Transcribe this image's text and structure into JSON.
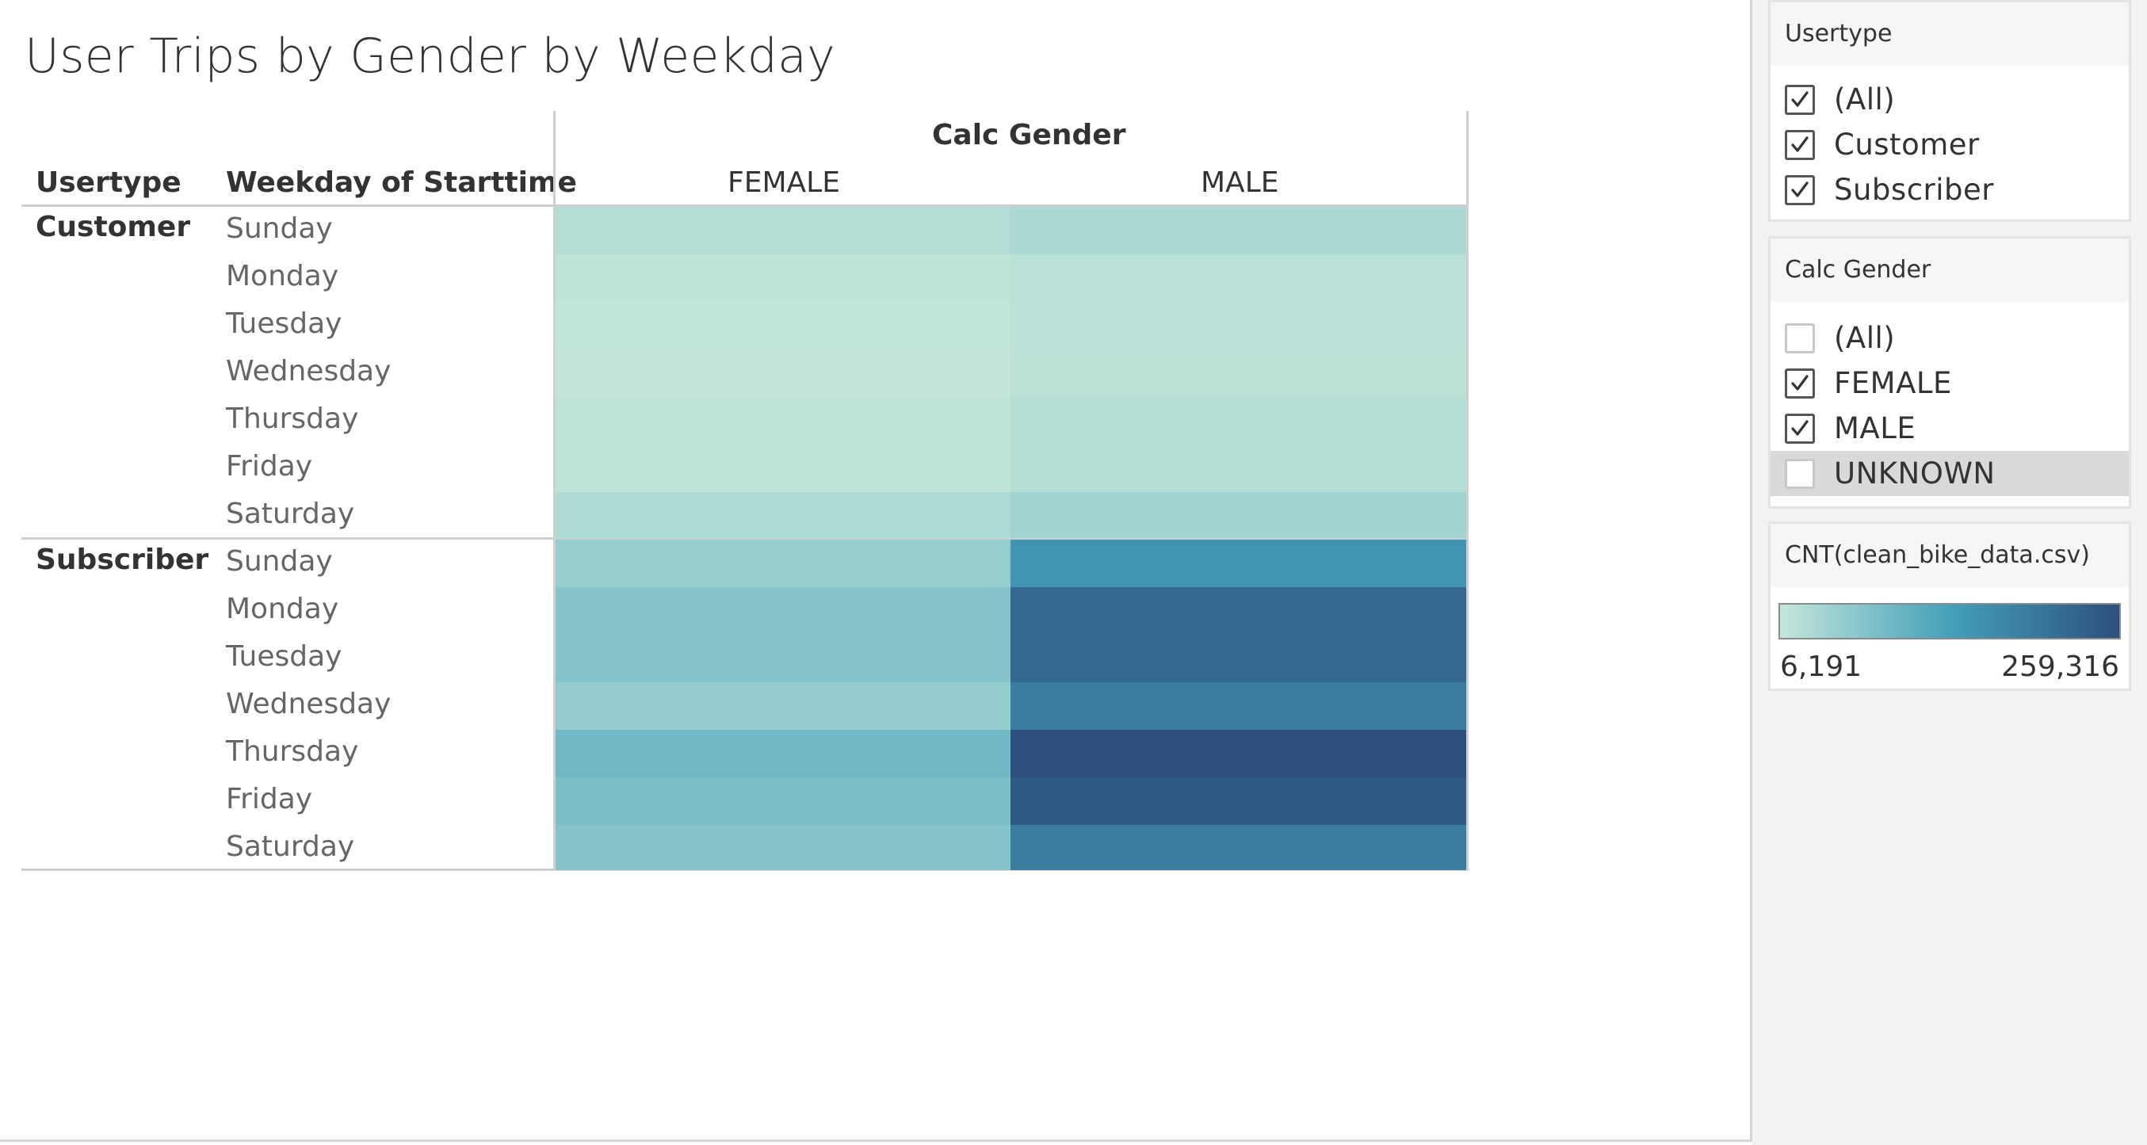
{
  "title": "User Trips by Gender by Weekday",
  "headers": {
    "row_dim_1": "Usertype",
    "row_dim_2": "Weekday of Starttime",
    "column_dim": "Calc Gender"
  },
  "colors": {
    "scale_low": "#c4e6da",
    "scale_mid": "#45a0ba",
    "scale_high": "#2d507f"
  },
  "chart_data": {
    "type": "heatmap",
    "title": "User Trips by Gender by Weekday",
    "columns": [
      "FEMALE",
      "MALE"
    ],
    "rows": [
      {
        "usertype": "Customer",
        "weekday": "Sunday",
        "values": [
          22000,
          30000
        ]
      },
      {
        "usertype": "Customer",
        "weekday": "Monday",
        "values": [
          9000,
          16000
        ]
      },
      {
        "usertype": "Customer",
        "weekday": "Tuesday",
        "values": [
          7000,
          15000
        ]
      },
      {
        "usertype": "Customer",
        "weekday": "Wednesday",
        "values": [
          6191,
          14000
        ]
      },
      {
        "usertype": "Customer",
        "weekday": "Thursday",
        "values": [
          9000,
          22000
        ]
      },
      {
        "usertype": "Customer",
        "weekday": "Friday",
        "values": [
          9000,
          22000
        ]
      },
      {
        "usertype": "Customer",
        "weekday": "Saturday",
        "values": [
          28000,
          41000
        ]
      },
      {
        "usertype": "Subscriber",
        "weekday": "Sunday",
        "values": [
          52000,
          150000
        ]
      },
      {
        "usertype": "Subscriber",
        "weekday": "Monday",
        "values": [
          70000,
          222000
        ]
      },
      {
        "usertype": "Subscriber",
        "weekday": "Tuesday",
        "values": [
          70000,
          222000
        ]
      },
      {
        "usertype": "Subscriber",
        "weekday": "Wednesday",
        "values": [
          55000,
          190000
        ]
      },
      {
        "usertype": "Subscriber",
        "weekday": "Thursday",
        "values": [
          88000,
          259316
        ]
      },
      {
        "usertype": "Subscriber",
        "weekday": "Friday",
        "values": [
          78000,
          245000
        ]
      },
      {
        "usertype": "Subscriber",
        "weekday": "Saturday",
        "values": [
          70000,
          190000
        ]
      }
    ],
    "color_range": [
      6191,
      259316
    ]
  },
  "filters": {
    "usertype": {
      "title": "Usertype",
      "items": [
        {
          "label": "(All)",
          "checked": true
        },
        {
          "label": "Customer",
          "checked": true
        },
        {
          "label": "Subscriber",
          "checked": true
        }
      ]
    },
    "gender": {
      "title": "Calc Gender",
      "items": [
        {
          "label": "(All)",
          "checked": false
        },
        {
          "label": "FEMALE",
          "checked": true
        },
        {
          "label": "MALE",
          "checked": true
        },
        {
          "label": "UNKNOWN",
          "checked": false,
          "highlighted": true
        }
      ]
    }
  },
  "legend": {
    "title": "CNT(clean_bike_data.csv)",
    "min_label": "6,191",
    "max_label": "259,316"
  }
}
